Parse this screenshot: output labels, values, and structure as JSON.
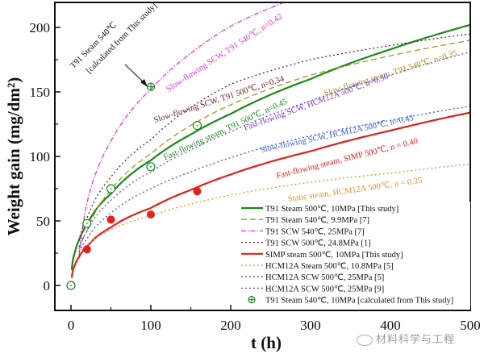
{
  "chart_data": {
    "type": "line",
    "title": "",
    "xlabel": "t (h)",
    "ylabel": "Weight gain (mg/dm²)",
    "xlim": [
      -12,
      500
    ],
    "ylim": [
      -20,
      220
    ],
    "xticks": [
      0,
      100,
      200,
      300,
      400,
      500
    ],
    "yticks": [
      0,
      50,
      100,
      150,
      200
    ],
    "xtick_labels": [
      "0",
      "100",
      "200",
      "300",
      "400",
      "500"
    ],
    "ytick_labels": [
      "0",
      "50",
      "100",
      "150",
      "200"
    ],
    "grid": false,
    "legend_position": "bottom-right",
    "series": [
      {
        "name": "T91 Steam 500℃, 10MPa [This study]",
        "style": "solid",
        "color": "#1a8a1a",
        "x": [
          1,
          5,
          10,
          20,
          50,
          100,
          150,
          200,
          300,
          400,
          500
        ],
        "y": [
          12,
          26,
          35,
          47,
          71,
          97,
          117,
          133,
          160,
          183,
          202
        ]
      },
      {
        "name": "T91 Steam 540℃, 9.9MPa [7]",
        "style": "dashed",
        "color": "#a09a20",
        "x": [
          10,
          20,
          50,
          100,
          150,
          200,
          300,
          400,
          500
        ],
        "y": [
          28,
          42,
          74,
          102,
          124,
          140,
          163,
          178,
          190
        ]
      },
      {
        "name": "T91 SCW 540℃, 25MPa  [7]",
        "style": "dashdot",
        "color": "#d63fd6",
        "x": [
          10,
          20,
          50,
          100,
          150,
          200,
          265
        ],
        "y": [
          22,
          64,
          112,
          152,
          180,
          201,
          219
        ]
      },
      {
        "name": "T91 SCW 500℃, 24.8MPa [1]",
        "style": "dotted",
        "color": "#6b1f2a",
        "x": [
          10,
          20,
          50,
          100,
          150,
          200,
          300,
          400,
          500
        ],
        "y": [
          35,
          52,
          84,
          113,
          138,
          156,
          175,
          186,
          195
        ]
      },
      {
        "name": "SIMP steam 500℃, 10MPa  [This study]",
        "style": "solid",
        "color": "#e3201c",
        "x": [
          1,
          5,
          10,
          20,
          50,
          100,
          150,
          200,
          300,
          400,
          500
        ],
        "y": [
          6,
          16,
          22,
          30,
          45,
          60,
          74,
          86,
          104,
          120,
          134
        ]
      },
      {
        "name": "HCM12A Steam 500℃, 10.8MPa [5]",
        "style": "dotted",
        "color": "#e8922a",
        "x": [
          10,
          20,
          50,
          100,
          150,
          200,
          300,
          400,
          500
        ],
        "y": [
          25,
          31,
          43,
          54,
          63,
          70,
          80,
          87,
          94
        ]
      },
      {
        "name": "HCM12A SCW 500℃, 25MPa [5]",
        "style": "dotted",
        "color": "#3b5bd6",
        "x": [
          10,
          20,
          50,
          100,
          150,
          200,
          300,
          400,
          500
        ],
        "y": [
          26,
          36,
          56,
          75,
          88,
          99,
          116,
          128,
          139
        ]
      },
      {
        "name": "HCM12A SCW 500℃, 25MPa [9]",
        "style": "dotted",
        "color": "#7b3fd6",
        "x": [
          10,
          20,
          50,
          100,
          150,
          200,
          300,
          400,
          500
        ],
        "y": [
          30,
          42,
          66,
          88,
          105,
          119,
          143,
          163,
          181
        ]
      },
      {
        "name": "T91 Steam 540℃, 10MPa [calculated from This study]",
        "style": "marker-crosscircle",
        "color": "#1a8a1a",
        "x": [
          100
        ],
        "y": [
          154
        ]
      }
    ],
    "markers": [
      {
        "name": "T91 Steam 500℃ measured",
        "shape": "open-circle-dot",
        "color": "#1a8a1a",
        "x": [
          0,
          20,
          50,
          100,
          158
        ],
        "y": [
          0,
          48,
          75,
          92,
          124
        ]
      },
      {
        "name": "SIMP steam 500℃ measured",
        "shape": "filled-circle",
        "color": "#e3201c",
        "x": [
          20,
          50,
          100,
          158
        ],
        "y": [
          28,
          51,
          55,
          73
        ]
      }
    ],
    "annotations": [
      {
        "text": "Slow-flowing SCW, T91 540℃, n=0.42",
        "color": "#d63fd6",
        "x": 122,
        "y": 150,
        "angle": -33
      },
      {
        "text": "Slow-flowing SCW, T91 500℃, n=0.34",
        "color": "#6b1f2a",
        "x": 105,
        "y": 126,
        "angle": -18
      },
      {
        "text": "Fast-flowing steam, T91 500℃, n=0.45",
        "color": "#1a8a1a",
        "x": 118,
        "y": 97,
        "angle": -25
      },
      {
        "text": "Slow-flowing steam, T91 540℃, n=0.35",
        "color": "#a09a20",
        "x": 318,
        "y": 147,
        "angle": -17
      },
      {
        "text": "Fast-flowing SCW, HCM12A 500℃, n=0.50",
        "color": "#7b3fd6",
        "x": 218,
        "y": 120,
        "angle": -20
      },
      {
        "text": "Slow-flowing SCW, HCM12A 500℃, n=0.43",
        "color": "#3b5bd6",
        "x": 238,
        "y": 103,
        "angle": -12
      },
      {
        "text": "Fast-flowing steam, SIMP 500℃, n = 0.40",
        "color": "#e3201c",
        "x": 258,
        "y": 83,
        "angle": -14
      },
      {
        "text": "Static steam, HCM12A 500℃, n = 0.35",
        "color": "#e8922a",
        "x": 272,
        "y": 65,
        "angle": -8
      },
      {
        "text": "T91 Steam 540℃",
        "color": "#111111",
        "x": 3,
        "y": 168,
        "angle": -45
      },
      {
        "text": "[calculated from This study]",
        "color": "#111111",
        "x": 23,
        "y": 164,
        "angle": -45
      }
    ]
  },
  "watermark": "材料科学与工程"
}
